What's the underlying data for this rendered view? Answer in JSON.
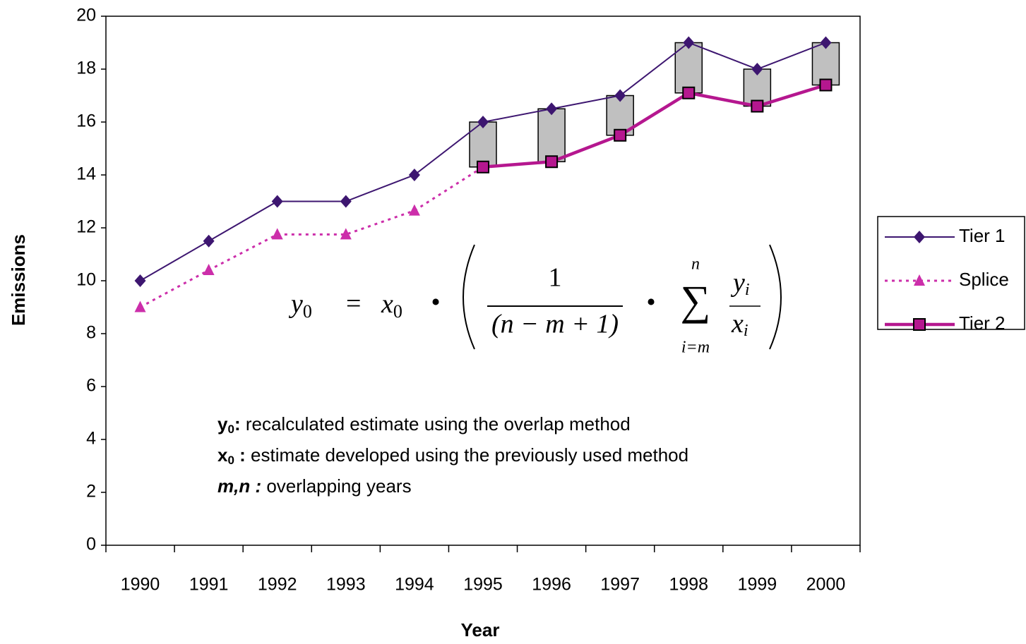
{
  "chart_data": {
    "type": "line",
    "x_label": "Year",
    "y_label": "Emissions",
    "categories": [
      "1990",
      "1991",
      "1992",
      "1993",
      "1994",
      "1995",
      "1996",
      "1997",
      "1998",
      "1999",
      "2000"
    ],
    "ylim": [
      0,
      20
    ],
    "yticks": [
      0,
      2,
      4,
      6,
      8,
      10,
      12,
      14,
      16,
      18,
      20
    ],
    "series": [
      {
        "name": "Tier 1",
        "color": "#3d1670",
        "marker": "diamond",
        "values": [
          10,
          11.5,
          13,
          13,
          14,
          16,
          16.5,
          17,
          19,
          18,
          19
        ]
      },
      {
        "name": "Splice",
        "color": "#cc2eaa",
        "marker": "triangle",
        "values": [
          9,
          10.4,
          11.75,
          11.75,
          12.65,
          14.3,
          null,
          null,
          null,
          null,
          null
        ]
      },
      {
        "name": "Tier 2",
        "color": "#b5178f",
        "marker": "square",
        "values": [
          null,
          null,
          null,
          null,
          null,
          14.3,
          14.5,
          15.5,
          17.1,
          16.6,
          17.4
        ]
      }
    ],
    "range_box_color": "#c0c0c0",
    "formula": {
      "lhs": "y",
      "lhs_sub": "0",
      "equals": "=",
      "x": "x",
      "x_sub": "0",
      "dot1": "•",
      "numerator": "1",
      "denominator": "(n − m + 1)",
      "dot2": "•",
      "sum": "∑",
      "sum_top": "n",
      "sum_bottom": "i=m",
      "frac_top": "y",
      "frac_top_sub": "i",
      "frac_bottom": "x",
      "frac_bottom_sub": "i"
    },
    "notes": [
      {
        "symbol": "y",
        "sub": "0",
        "colon": ":",
        "text": "  recalculated estimate using the overlap method"
      },
      {
        "symbol": "x",
        "sub": "0",
        "colon": " :",
        "text": " estimate developed using the previously used method"
      },
      {
        "symbol": "m,n :",
        "text": " overlapping years"
      }
    ]
  }
}
